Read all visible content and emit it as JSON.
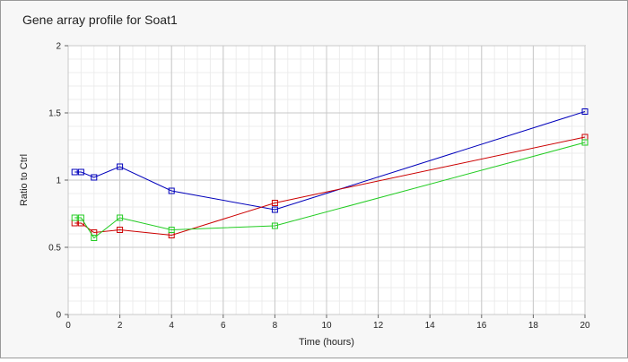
{
  "chart_data": {
    "type": "line",
    "title": "Gene array profile for Soat1",
    "xlabel": "Time (hours)",
    "ylabel": "Ratio to Ctrl",
    "xlim": [
      0,
      20
    ],
    "ylim": [
      0,
      2
    ],
    "x_ticks": [
      "0",
      "2",
      "4",
      "6",
      "8",
      "10",
      "12",
      "14",
      "16",
      "18",
      "20"
    ],
    "y_ticks": [
      "0",
      "0.5",
      "1",
      "1.5",
      "2"
    ],
    "grid": true,
    "legend": "none",
    "series": [
      {
        "color": "#0000bb",
        "marker": "square",
        "x": [
          0.25,
          0.5,
          1,
          2,
          4,
          8,
          20
        ],
        "y": [
          1.06,
          1.06,
          1.02,
          1.1,
          0.92,
          0.78,
          1.51
        ]
      },
      {
        "color": "#cc0000",
        "marker": "square",
        "x": [
          0.25,
          0.5,
          1,
          2,
          4,
          8,
          20
        ],
        "y": [
          0.68,
          0.68,
          0.61,
          0.63,
          0.59,
          0.83,
          1.32
        ]
      },
      {
        "color": "#22cc22",
        "marker": "square",
        "x": [
          0.25,
          0.5,
          1,
          2,
          4,
          8,
          20
        ],
        "y": [
          0.72,
          0.72,
          0.57,
          0.72,
          0.63,
          0.66,
          1.28
        ]
      }
    ]
  }
}
